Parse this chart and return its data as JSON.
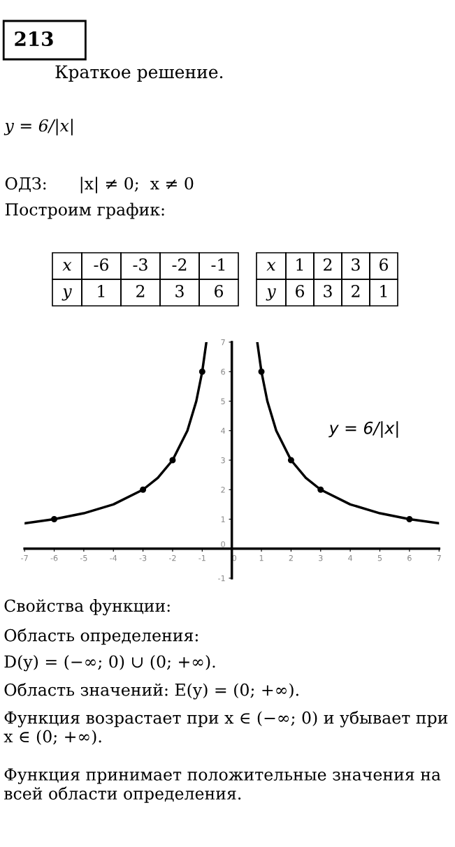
{
  "chart_data": {
    "type": "line",
    "title": "213",
    "subtitle": "Краткое решение.",
    "x": [
      -7,
      -6,
      -5,
      -4,
      -3,
      -2.5,
      -2,
      -1.5,
      -1.2,
      -1,
      -0.86,
      0,
      0.86,
      1,
      1.2,
      1.5,
      2,
      2.5,
      3,
      4,
      5,
      6,
      7
    ],
    "series": [
      {
        "color": "#000000",
        "values": [
          0.86,
          1,
          1.2,
          1.5,
          2,
          2.4,
          3,
          4,
          5,
          6,
          7,
          null,
          7,
          6,
          5,
          4,
          3,
          2.4,
          2,
          1.5,
          1.2,
          1,
          0.86
        ]
      },
      {
        "type": "scatter",
        "marker": "circle",
        "color": "#000000",
        "x": [
          -6,
          -3,
          -2,
          -1,
          1,
          2,
          3,
          6
        ],
        "values": [
          1,
          2,
          3,
          6,
          6,
          3,
          2,
          1
        ]
      }
    ],
    "xlim": [
      -7,
      7
    ],
    "ylim": [
      -1,
      7
    ],
    "xticks": [
      -7,
      -6,
      -5,
      -4,
      -3,
      -2,
      -1,
      0,
      1,
      2,
      3,
      4,
      5,
      6,
      7
    ],
    "yticks": [
      -1,
      0,
      1,
      2,
      3,
      4,
      5,
      6,
      7
    ],
    "grid": false,
    "legend": false,
    "annotations": [
      "y = 6/|x|",
      "ОДЗ:      |x| ≠ 0;  x ≠ 0",
      "Построим график:",
      "x -6 -3 -2 -1",
      "y 1 2 3 6",
      "x 1 2 3 6",
      "y 6 3 2 1",
      "y = 6/|x|",
      "Свойства функции:",
      "Область определения:",
      "D(y) = (−∞; 0) ∪ (0; +∞).",
      "Область значений: E(y) = (0; +∞).",
      "Функция возрастает при x ∈ (−∞; 0) и убывает при x ∈ (0; +∞).",
      "Функция принимает положительные значения на всей области определения."
    ]
  }
}
